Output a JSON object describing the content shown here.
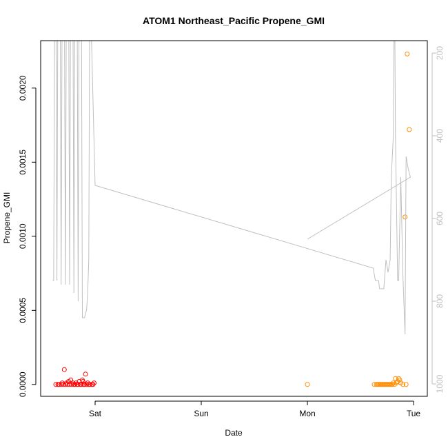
{
  "chart_data": {
    "type": "scatter",
    "title": "ATOM1 Northeast_Pacific Propene_GMI",
    "xlabel": "Date",
    "ylabel": "Propene_GMI",
    "xlim": [
      -0.06,
      3.05
    ],
    "ylim": [
      -8e-05,
      0.00232
    ],
    "x_ticks": [
      {
        "value": 0,
        "label": "Sat"
      },
      {
        "value": 1,
        "label": "Sun"
      },
      {
        "value": 2,
        "label": "Mon"
      },
      {
        "value": 3,
        "label": "Tue"
      }
    ],
    "y_ticks": [
      {
        "value": 0.0,
        "label": "0.0000"
      },
      {
        "value": 0.0005,
        "label": "0.0005"
      },
      {
        "value": 0.001,
        "label": "0.0010"
      },
      {
        "value": 0.0015,
        "label": "0.0015"
      },
      {
        "value": 0.002,
        "label": "0.0020"
      }
    ],
    "y2_axis": {
      "reversed": true,
      "lim": [
        1030,
        170
      ],
      "ticks": [
        {
          "value": 200,
          "label": "200"
        },
        {
          "value": 400,
          "label": "400"
        },
        {
          "value": 600,
          "label": "600"
        },
        {
          "value": 800,
          "label": "800"
        },
        {
          "value": 1000,
          "label": "1000"
        }
      ],
      "color": "#bfbfbf"
    },
    "series": [
      {
        "color": "#ff0000",
        "kind": "points",
        "points": [
          [
            -0.37,
            0.0
          ],
          [
            -0.35,
            0.0
          ],
          [
            -0.34,
            0.0
          ],
          [
            -0.32,
            0.0
          ],
          [
            -0.31,
            1e-05
          ],
          [
            -0.3,
            0.0
          ],
          [
            -0.29,
            0.0001
          ],
          [
            -0.28,
            0.0
          ],
          [
            -0.27,
            1e-05
          ],
          [
            -0.26,
            0.0
          ],
          [
            -0.25,
            2e-05
          ],
          [
            -0.24,
            0.0
          ],
          [
            -0.23,
            3e-05
          ],
          [
            -0.22,
            0.0
          ],
          [
            -0.21,
            1e-05
          ],
          [
            -0.2,
            0.0
          ],
          [
            -0.19,
            0.0
          ],
          [
            -0.18,
            1e-05
          ],
          [
            -0.17,
            0.0
          ],
          [
            -0.16,
            0.0
          ],
          [
            -0.15,
            2e-05
          ],
          [
            -0.14,
            0.0
          ],
          [
            -0.13,
            0.0
          ],
          [
            -0.12,
            3e-05
          ],
          [
            -0.115,
            2e-05
          ],
          [
            -0.11,
            0.0
          ],
          [
            -0.1,
            0.0
          ],
          [
            -0.09,
            7e-05
          ],
          [
            -0.08,
            0.0
          ],
          [
            -0.07,
            1e-05
          ],
          [
            -0.06,
            0.0
          ],
          [
            -0.05,
            0.0
          ],
          [
            -0.03,
            0.0
          ],
          [
            -0.02,
            0.0
          ],
          [
            -0.01,
            1e-05
          ]
        ]
      },
      {
        "color": "#ff8c00",
        "kind": "points",
        "points": [
          [
            2.0,
            0.0
          ],
          [
            2.63,
            0.0
          ],
          [
            2.65,
            0.0
          ],
          [
            2.66,
            0.0
          ],
          [
            2.67,
            0.0
          ],
          [
            2.68,
            0.0
          ],
          [
            2.69,
            0.0
          ],
          [
            2.7,
            0.0
          ],
          [
            2.71,
            0.0
          ],
          [
            2.72,
            0.0
          ],
          [
            2.73,
            0.0
          ],
          [
            2.74,
            0.0
          ],
          [
            2.75,
            0.0
          ],
          [
            2.76,
            0.0
          ],
          [
            2.77,
            0.0
          ],
          [
            2.78,
            0.0
          ],
          [
            2.79,
            0.0
          ],
          [
            2.8,
            0.0
          ],
          [
            2.81,
            1e-05
          ],
          [
            2.82,
            0.0
          ],
          [
            2.83,
            4e-05
          ],
          [
            2.84,
            1e-05
          ],
          [
            2.85,
            2e-05
          ],
          [
            2.86,
            4e-05
          ],
          [
            2.87,
            3e-05
          ],
          [
            2.88,
            1e-05
          ],
          [
            2.9,
            0.0
          ],
          [
            2.92,
            0.00113
          ],
          [
            2.93,
            0.0
          ],
          [
            2.94,
            0.00223
          ],
          [
            2.96,
            0.00172
          ]
        ]
      },
      {
        "color": "#bfbfbf",
        "kind": "line",
        "axis": "y2",
        "points": [
          [
            -0.4,
            750
          ],
          [
            -0.39,
            750
          ],
          [
            -0.38,
            0
          ],
          [
            -0.37,
            0
          ],
          [
            -0.36,
            750
          ],
          [
            -0.35,
            0
          ],
          [
            -0.33,
            0
          ],
          [
            -0.32,
            760
          ],
          [
            -0.31,
            0
          ],
          [
            -0.29,
            0
          ],
          [
            -0.28,
            760
          ],
          [
            -0.27,
            0
          ],
          [
            -0.25,
            0
          ],
          [
            -0.24,
            760
          ],
          [
            -0.23,
            0
          ],
          [
            -0.21,
            0
          ],
          [
            -0.2,
            780
          ],
          [
            -0.19,
            0
          ],
          [
            -0.17,
            0
          ],
          [
            -0.16,
            800
          ],
          [
            -0.15,
            0
          ],
          [
            -0.13,
            0
          ],
          [
            -0.12,
            840
          ],
          [
            -0.1,
            840
          ],
          [
            -0.08,
            820
          ],
          [
            -0.07,
            780
          ],
          [
            -0.06,
            700
          ],
          [
            -0.05,
            0
          ],
          [
            0.0,
            520
          ],
          [
            2.62,
            720
          ],
          [
            2.64,
            750
          ],
          [
            2.67,
            750
          ],
          [
            2.68,
            770
          ],
          [
            2.72,
            770
          ],
          [
            2.74,
            700
          ],
          [
            2.76,
            730
          ],
          [
            2.78,
            700
          ],
          [
            2.79,
            500
          ],
          [
            2.81,
            400
          ],
          [
            2.82,
            0
          ],
          [
            2.83,
            400
          ],
          [
            2.85,
            750
          ],
          [
            2.86,
            750
          ],
          [
            2.88,
            500
          ],
          [
            2.9,
            740
          ],
          [
            2.92,
            880
          ],
          [
            2.93,
            450
          ],
          [
            2.95,
            480
          ],
          [
            2.97,
            500
          ],
          [
            2.0,
            650
          ]
        ]
      }
    ],
    "grid": false,
    "legend": "none"
  }
}
